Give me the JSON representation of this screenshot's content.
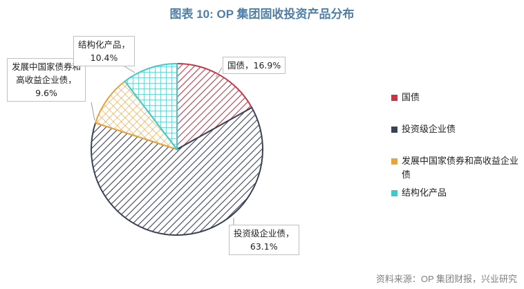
{
  "chart_data": {
    "type": "pie",
    "title": "图表 10: OP 集团固收投资产品分布",
    "slices": [
      {
        "name": "国债",
        "value": 16.9,
        "color": "#c0394b",
        "pattern": "diagonal",
        "label_line1": "国债，16.9%",
        "label_line2": ""
      },
      {
        "name": "投资级企业债",
        "value": 63.1,
        "color": "#3a4255",
        "pattern": "diagonal",
        "label_line1": "投资级企业债，",
        "label_line2": "63.1%"
      },
      {
        "name": "发展中国家债券和高收益企业债",
        "value": 9.6,
        "color": "#e8a33a",
        "pattern": "cross",
        "label_line1": "发展中国家债券和",
        "label_line2": "高收益企业债，",
        "label_line3": "9.6%"
      },
      {
        "name": "结构化产品",
        "value": 10.4,
        "color": "#3fc9c9",
        "pattern": "grid",
        "label_line1": "结构化产品，",
        "label_line2": "10.4%"
      }
    ],
    "legend": {
      "placement": "right"
    }
  },
  "source": "资料来源：OP 集团财报，兴业研究"
}
